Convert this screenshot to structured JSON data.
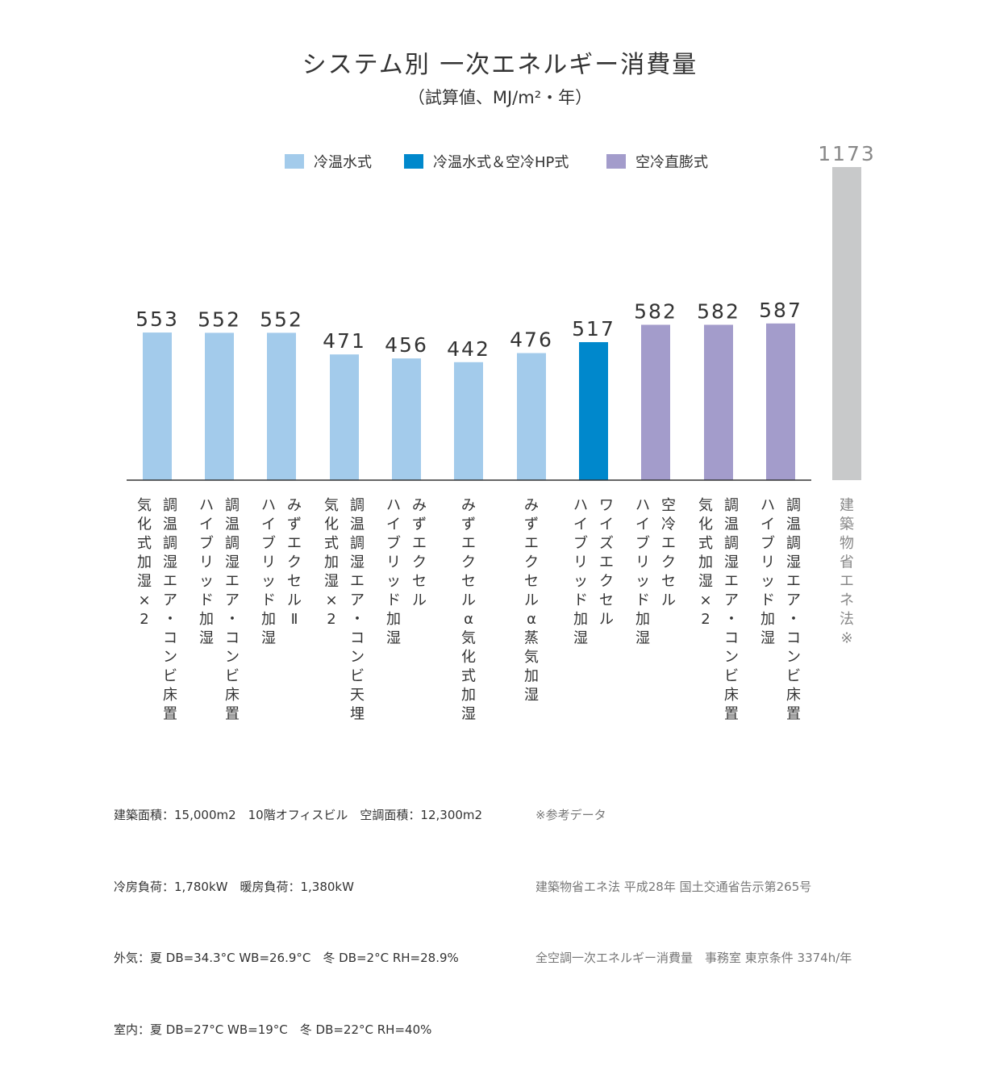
{
  "chart_data": {
    "type": "bar",
    "title": "システム別 一次エネルギー消費量",
    "subtitle": "（試算値、MJ/m²・年）",
    "legend": [
      {
        "name": "冷温水式",
        "color": "#a3cbeb"
      },
      {
        "name": "冷温水式＆空冷HP式",
        "color": "#0088cc"
      },
      {
        "name": "空冷直膨式",
        "color": "#a39ccb"
      }
    ],
    "legend_position": "top",
    "grid": false,
    "ylim": [
      0,
      1173
    ],
    "categories": [
      [
        "調温調湿エア・コンビ床置",
        "気化式加湿×2"
      ],
      [
        "調温調湿エア・コンビ床置",
        "ハイブリッド加湿"
      ],
      [
        "みずエクセルⅡ",
        "ハイブリッド加湿"
      ],
      [
        "調温調湿エア・コンビ天埋",
        "気化式加湿×2"
      ],
      [
        "みずエクセル",
        "ハイブリッド加湿"
      ],
      [
        "みずエクセルα 気化式加湿"
      ],
      [
        "みずエクセルα 蒸気加湿"
      ],
      [
        "ワイズエクセル",
        "ハイブリッド加湿"
      ],
      [
        "空冷エクセル",
        "ハイブリッド加湿"
      ],
      [
        "調温調湿エア・コンビ床置",
        "気化式加湿×2"
      ],
      [
        "調温調湿エア・コンビ床置",
        "ハイブリッド加湿"
      ],
      [
        "建築物省エネ法※"
      ]
    ],
    "values": [
      553,
      552,
      552,
      471,
      456,
      442,
      476,
      517,
      582,
      582,
      587,
      1173
    ],
    "value_labels": [
      "553",
      "552",
      "552",
      "471",
      "456",
      "442",
      "476",
      "517",
      "582",
      "582",
      "587",
      "1173"
    ],
    "series_index": [
      0,
      0,
      0,
      0,
      0,
      0,
      0,
      1,
      2,
      2,
      2,
      3
    ],
    "reference_color": "#c8c9ca"
  },
  "notes": {
    "left": [
      "建築面積：15,000m2　10階オフィスビル　空調面積：12,300m2",
      "冷房負荷：1,780kW　暖房負荷：1,380kW",
      "外気：夏 DB=34.3°C WB=26.9°C　冬 DB=2°C RH=28.9%",
      "室内：夏 DB=27°C WB=19°C　冬 DB=22°C RH=40%"
    ],
    "right": [
      "※参考データ",
      "建築物省エネ法 平成28年 国土交通省告示第265号",
      "全空調一次エネルギー消費量　事務室 東京条件 3374h/年"
    ]
  }
}
